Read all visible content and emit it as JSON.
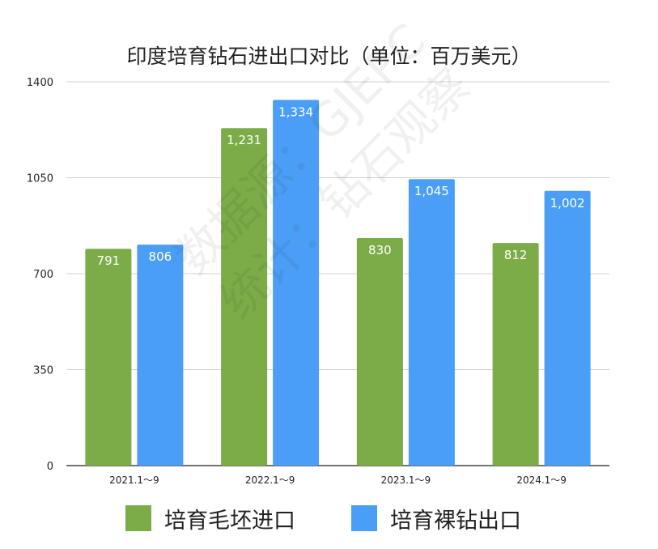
{
  "chart_data": {
    "type": "bar",
    "title": "印度培育钻石进出口对比（单位：百万美元）",
    "categories": [
      "2021.1～9",
      "2022.1～9",
      "2023.1～9",
      "2024.1～9"
    ],
    "series": [
      {
        "name": "培育毛坯进口",
        "values": [
          791,
          1231,
          830,
          812
        ],
        "labels": [
          "791",
          "1,231",
          "830",
          "812"
        ],
        "color": "#7CAC48"
      },
      {
        "name": "培育裸钻出口",
        "values": [
          806,
          1334,
          1045,
          1002
        ],
        "labels": [
          "806",
          "1,334",
          "1,045",
          "1,002"
        ],
        "color": "#4A9EF5"
      }
    ],
    "yticks": [
      "0",
      "350",
      "700",
      "1050",
      "1400"
    ],
    "ylim": [
      0,
      1400
    ],
    "grid": true,
    "legend_position": "bottom"
  },
  "watermark": {
    "line1": "数据源：GJEPC",
    "line2": "统计：钻石观察"
  }
}
